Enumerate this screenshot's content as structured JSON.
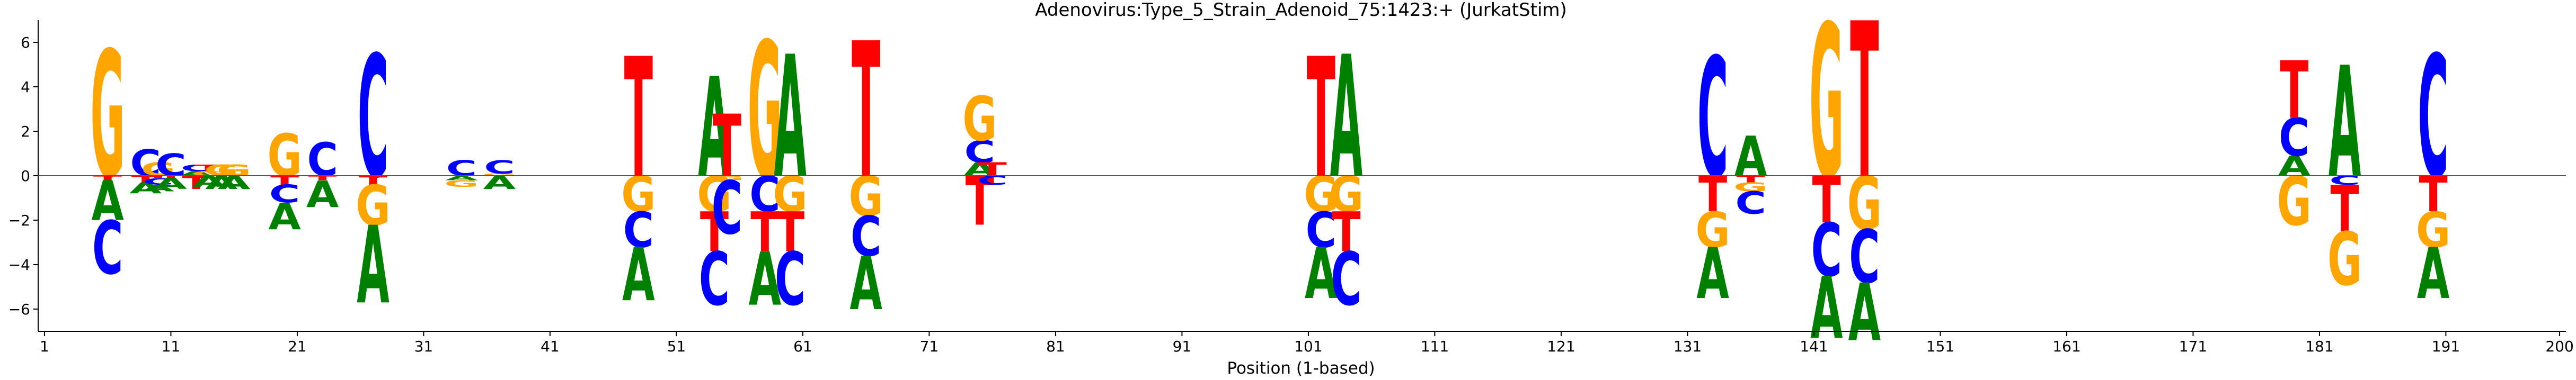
{
  "chart_data": {
    "type": "logo",
    "title": "Adenovirus:Type_5_Strain_Adenoid_75:1423:+  (JurkatStim)",
    "xlabel": "Position (1-based)",
    "ylabel": "",
    "xlim": [
      0.5,
      200.5
    ],
    "ylim": [
      -7.0,
      7.0
    ],
    "x_ticks": [
      1,
      11,
      21,
      31,
      41,
      51,
      61,
      71,
      81,
      91,
      101,
      111,
      121,
      131,
      141,
      151,
      161,
      171,
      181,
      191,
      200
    ],
    "y_ticks": [
      -6,
      -4,
      -2,
      0,
      2,
      4,
      6
    ],
    "zero_line": true,
    "base_colors": {
      "A": "#008000",
      "C": "#0000ff",
      "G": "#ffa500",
      "T": "#ff0000"
    },
    "positions": [
      {
        "x": 6,
        "letters": [
          [
            "G",
            5.7
          ],
          [
            "T",
            -0.2
          ],
          [
            "C",
            -2.4
          ],
          [
            "A",
            -1.8
          ]
        ]
      },
      {
        "x": 9,
        "letters": [
          [
            "C",
            1.2
          ],
          [
            "T",
            -0.3
          ],
          [
            "A",
            -0.5
          ]
        ]
      },
      {
        "x": 10,
        "letters": [
          [
            "G",
            0.6
          ],
          [
            "T",
            -0.1
          ],
          [
            "C",
            -0.3
          ],
          [
            "A",
            -0.3
          ]
        ]
      },
      {
        "x": 11,
        "letters": [
          [
            "C",
            1.0
          ],
          [
            "T",
            -0.1
          ],
          [
            "A",
            -0.5
          ]
        ]
      },
      {
        "x": 13,
        "letters": [
          [
            "C",
            0.3
          ],
          [
            "A",
            0.2
          ],
          [
            "T",
            -0.6
          ]
        ]
      },
      {
        "x": 14,
        "letters": [
          [
            "T",
            0.3
          ],
          [
            "G",
            0.2
          ],
          [
            "A",
            -0.5
          ]
        ]
      },
      {
        "x": 15,
        "letters": [
          [
            "G",
            0.5
          ],
          [
            "A",
            -0.6
          ]
        ]
      },
      {
        "x": 16,
        "letters": [
          [
            "G",
            0.5
          ],
          [
            "A",
            -0.6
          ]
        ]
      },
      {
        "x": 20,
        "letters": [
          [
            "G",
            1.9
          ],
          [
            "T",
            -0.4
          ],
          [
            "C",
            -0.8
          ],
          [
            "A",
            -1.2
          ]
        ]
      },
      {
        "x": 23,
        "letters": [
          [
            "C",
            1.5
          ],
          [
            "T",
            -0.2
          ],
          [
            "A",
            -1.2
          ]
        ]
      },
      {
        "x": 27,
        "letters": [
          [
            "C",
            5.5
          ],
          [
            "T",
            -0.4
          ],
          [
            "G",
            -1.8
          ],
          [
            "A",
            -3.5
          ]
        ]
      },
      {
        "x": 34,
        "letters": [
          [
            "C",
            0.7
          ],
          [
            "G",
            -0.3
          ],
          [
            "A",
            -0.2
          ]
        ]
      },
      {
        "x": 37,
        "letters": [
          [
            "C",
            0.6
          ],
          [
            "G",
            0.1
          ],
          [
            "A",
            -0.6
          ]
        ]
      },
      {
        "x": 48,
        "letters": [
          [
            "T",
            5.4
          ],
          [
            "G",
            -1.6
          ],
          [
            "C",
            -1.6
          ],
          [
            "A",
            -2.4
          ]
        ]
      },
      {
        "x": 54,
        "letters": [
          [
            "A",
            4.5
          ],
          [
            "T",
            -1.8
          ],
          [
            "G",
            -1.6
          ],
          [
            "C",
            -2.4
          ]
        ]
      },
      {
        "x": 55,
        "letters": [
          [
            "T",
            2.8
          ],
          [
            "G",
            -0.2
          ],
          [
            "C",
            -2.4
          ]
        ]
      },
      {
        "x": 58,
        "letters": [
          [
            "G",
            6.1
          ],
          [
            "T",
            -1.8
          ],
          [
            "C",
            -1.6
          ],
          [
            "A",
            -2.4
          ]
        ]
      },
      {
        "x": 60,
        "letters": [
          [
            "A",
            5.5
          ],
          [
            "T",
            -1.8
          ],
          [
            "G",
            -1.6
          ],
          [
            "C",
            -2.4
          ]
        ]
      },
      {
        "x": 66,
        "letters": [
          [
            "T",
            6.1
          ],
          [
            "G",
            -1.8
          ],
          [
            "C",
            -1.8
          ],
          [
            "A",
            -2.4
          ]
        ]
      },
      {
        "x": 75,
        "letters": [
          [
            "G",
            2.0
          ],
          [
            "C",
            1.0
          ],
          [
            "A",
            0.6
          ],
          [
            "T",
            -2.2
          ]
        ]
      },
      {
        "x": 76,
        "letters": [
          [
            "T",
            0.6
          ],
          [
            "C",
            -0.4
          ]
        ]
      },
      {
        "x": 102,
        "letters": [
          [
            "T",
            5.4
          ],
          [
            "G",
            -1.6
          ],
          [
            "C",
            -1.6
          ],
          [
            "A",
            -2.3
          ]
        ]
      },
      {
        "x": 104,
        "letters": [
          [
            "A",
            5.5
          ],
          [
            "T",
            -1.8
          ],
          [
            "G",
            -1.6
          ],
          [
            "C",
            -2.4
          ]
        ]
      },
      {
        "x": 133,
        "letters": [
          [
            "C",
            5.4
          ],
          [
            "T",
            -1.6
          ],
          [
            "G",
            -1.6
          ],
          [
            "A",
            -2.3
          ]
        ]
      },
      {
        "x": 136,
        "letters": [
          [
            "A",
            1.8
          ],
          [
            "T",
            -0.3
          ],
          [
            "G",
            -0.4
          ],
          [
            "C",
            -1.0
          ]
        ]
      },
      {
        "x": 142,
        "letters": [
          [
            "G",
            6.9
          ],
          [
            "T",
            -2.1
          ],
          [
            "C",
            -2.4
          ],
          [
            "A",
            -2.8
          ]
        ]
      },
      {
        "x": 145,
        "letters": [
          [
            "T",
            7.0
          ],
          [
            "G",
            -2.4
          ],
          [
            "C",
            -2.4
          ],
          [
            "A",
            -2.6
          ]
        ]
      },
      {
        "x": 179,
        "letters": [
          [
            "T",
            2.6
          ],
          [
            "C",
            1.7
          ],
          [
            "A",
            0.9
          ],
          [
            "G",
            -2.2
          ]
        ]
      },
      {
        "x": 183,
        "letters": [
          [
            "A",
            5.0
          ],
          [
            "C",
            -0.4
          ],
          [
            "G",
            -2.4
          ],
          [
            "T",
            -2.1
          ]
        ]
      },
      {
        "x": 190,
        "letters": [
          [
            "C",
            5.5
          ],
          [
            "T",
            -1.6
          ],
          [
            "G",
            -1.6
          ],
          [
            "A",
            -2.3
          ]
        ]
      }
    ]
  }
}
